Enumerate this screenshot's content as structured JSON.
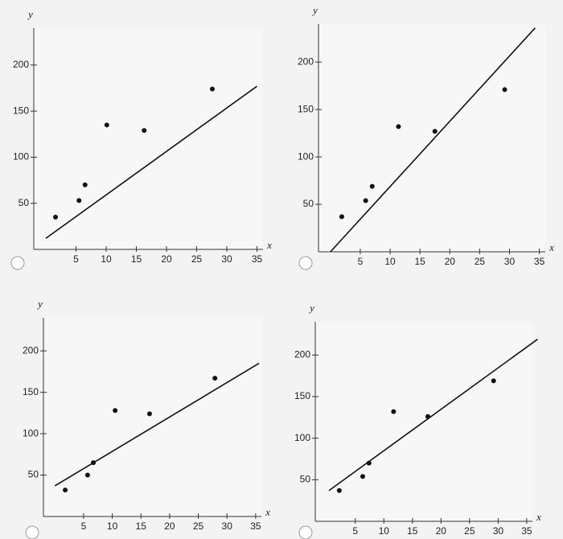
{
  "chart_data": [
    {
      "type": "scatter",
      "xlabel": "x",
      "ylabel": "y",
      "xlim": [
        -2,
        36
      ],
      "ylim": [
        0,
        240
      ],
      "xticks": [
        5,
        10,
        15,
        20,
        25,
        30,
        35
      ],
      "yticks": [
        50,
        100,
        150,
        200
      ],
      "x": [
        1.6,
        5.5,
        6.5,
        10.1,
        16.3,
        27.6
      ],
      "y": [
        35,
        53,
        70,
        135,
        129,
        174
      ],
      "line": {
        "x": [
          0,
          35
        ],
        "y": [
          12,
          177
        ]
      },
      "color": "#111111"
    },
    {
      "type": "scatter",
      "xlabel": "x",
      "ylabel": "y",
      "xlim": [
        -2,
        36
      ],
      "ylim": [
        0,
        240
      ],
      "xticks": [
        5,
        10,
        15,
        20,
        25,
        30,
        35
      ],
      "yticks": [
        50,
        100,
        150,
        200
      ],
      "x": [
        1.9,
        5.9,
        7,
        11.4,
        17.5,
        29.2
      ],
      "y": [
        37,
        54,
        69,
        132,
        127,
        171
      ],
      "line": {
        "x": [
          0,
          34.3
        ],
        "y": [
          0,
          236
        ]
      },
      "color": "#111111"
    },
    {
      "type": "scatter",
      "xlabel": "x",
      "ylabel": "y",
      "xlim": [
        -2,
        36
      ],
      "ylim": [
        0,
        240
      ],
      "xticks": [
        5,
        10,
        15,
        20,
        25,
        30,
        35
      ],
      "yticks": [
        50,
        100,
        150,
        200
      ],
      "x": [
        1.8,
        5.7,
        6.7,
        10.5,
        16.5,
        27.9
      ],
      "y": [
        32,
        50,
        65,
        128,
        124,
        167
      ],
      "line": {
        "x": [
          0,
          35.6
        ],
        "y": [
          37,
          185
        ]
      },
      "color": "#111111"
    },
    {
      "type": "scatter",
      "xlabel": "x",
      "ylabel": "y",
      "xlim": [
        -2,
        36
      ],
      "ylim": [
        0,
        240
      ],
      "xticks": [
        5,
        10,
        15,
        20,
        25,
        30,
        35
      ],
      "yticks": [
        50,
        100,
        150,
        200
      ],
      "x": [
        2.2,
        6.3,
        7.4,
        11.7,
        17.7,
        29.2
      ],
      "y": [
        37,
        54,
        70,
        132,
        126,
        169
      ],
      "line": {
        "x": [
          0.4,
          36.9
        ],
        "y": [
          37,
          219
        ]
      },
      "color": "#111111"
    }
  ]
}
